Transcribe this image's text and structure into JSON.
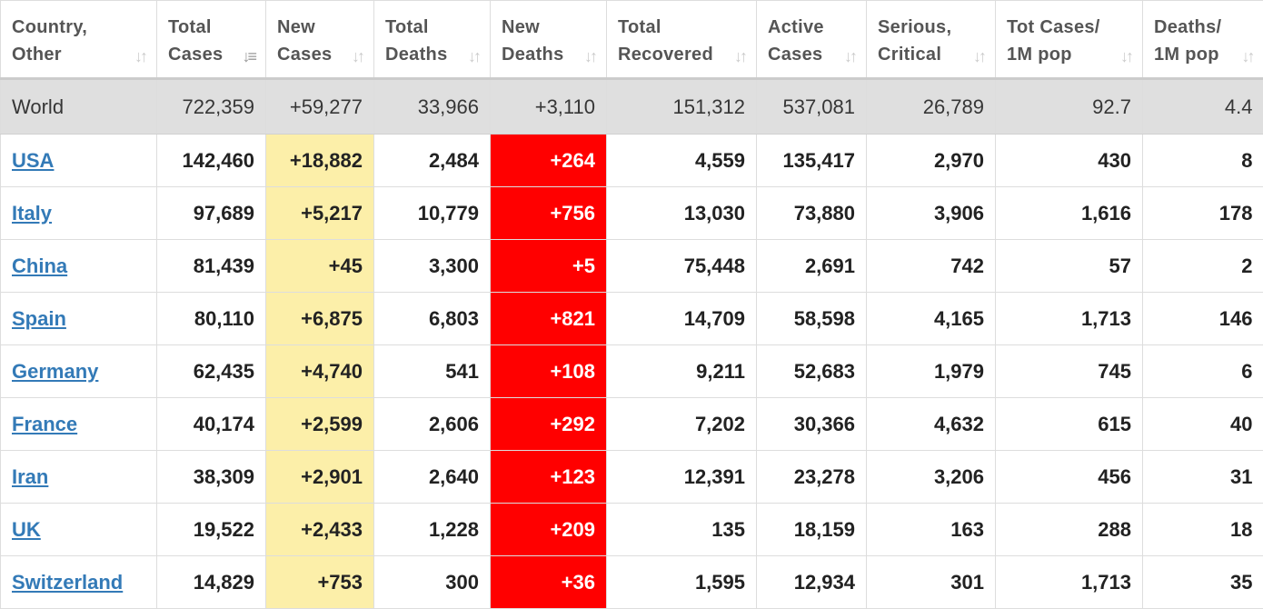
{
  "columns": [
    {
      "label": "Country,\nOther"
    },
    {
      "label": "Total\nCases"
    },
    {
      "label": "New\nCases"
    },
    {
      "label": "Total\nDeaths"
    },
    {
      "label": "New\nDeaths"
    },
    {
      "label": "Total\nRecovered"
    },
    {
      "label": "Active\nCases"
    },
    {
      "label": "Serious,\nCritical"
    },
    {
      "label": "Tot Cases/\n1M pop"
    },
    {
      "label": "Deaths/\n1M pop"
    }
  ],
  "sorted_column": "Total Cases",
  "icons": {
    "sort": "sort-arrows-icon",
    "sorted": "sort-descending-icon"
  },
  "colors": {
    "new_cases_highlight": "#fcefa9",
    "new_deaths_highlight": "#ff0000",
    "link": "#337ab7",
    "world_row": "#dfdfdf"
  },
  "world": [
    "World",
    "722,359",
    "+59,277",
    "33,966",
    "+3,110",
    "151,312",
    "537,081",
    "26,789",
    "92.7",
    "4.4"
  ],
  "rows": [
    [
      "USA",
      "142,460",
      "+18,882",
      "2,484",
      "+264",
      "4,559",
      "135,417",
      "2,970",
      "430",
      "8"
    ],
    [
      "Italy",
      "97,689",
      "+5,217",
      "10,779",
      "+756",
      "13,030",
      "73,880",
      "3,906",
      "1,616",
      "178"
    ],
    [
      "China",
      "81,439",
      "+45",
      "3,300",
      "+5",
      "75,448",
      "2,691",
      "742",
      "57",
      "2"
    ],
    [
      "Spain",
      "80,110",
      "+6,875",
      "6,803",
      "+821",
      "14,709",
      "58,598",
      "4,165",
      "1,713",
      "146"
    ],
    [
      "Germany",
      "62,435",
      "+4,740",
      "541",
      "+108",
      "9,211",
      "52,683",
      "1,979",
      "745",
      "6"
    ],
    [
      "France",
      "40,174",
      "+2,599",
      "2,606",
      "+292",
      "7,202",
      "30,366",
      "4,632",
      "615",
      "40"
    ],
    [
      "Iran",
      "38,309",
      "+2,901",
      "2,640",
      "+123",
      "12,391",
      "23,278",
      "3,206",
      "456",
      "31"
    ],
    [
      "UK",
      "19,522",
      "+2,433",
      "1,228",
      "+209",
      "135",
      "18,159",
      "163",
      "288",
      "18"
    ],
    [
      "Switzerland",
      "14,829",
      "+753",
      "300",
      "+36",
      "1,595",
      "12,934",
      "301",
      "1,713",
      "35"
    ]
  ]
}
